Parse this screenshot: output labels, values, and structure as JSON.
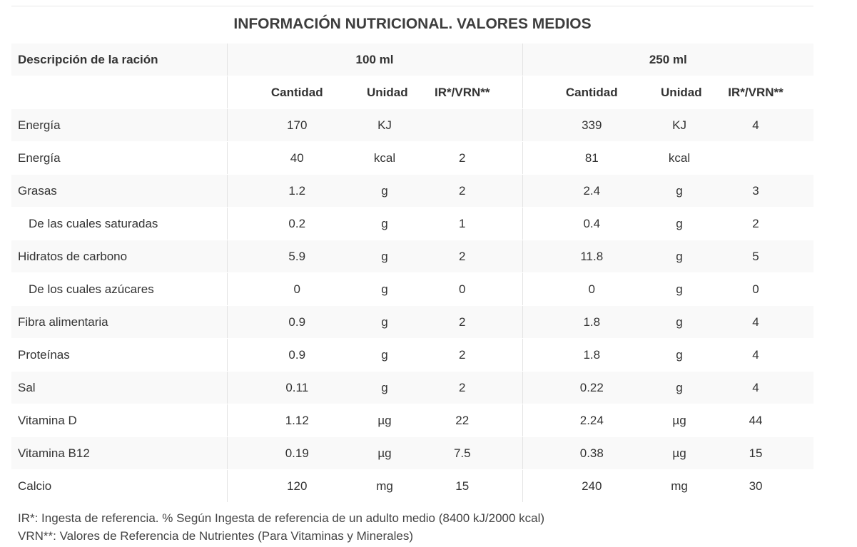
{
  "title": "INFORMACIÓN NUTRICIONAL. VALORES MEDIOS",
  "header": {
    "description_label": "Descripción de la ración",
    "group_100": "100 ml",
    "group_250": "250 ml",
    "sub_cantidad": "Cantidad",
    "sub_unidad": "Unidad",
    "sub_ir": "IR*/VRN**"
  },
  "rows": [
    {
      "name": "Energía",
      "q100": "170",
      "u100": "KJ",
      "ir100": "",
      "q250": "339",
      "u250": "KJ",
      "ir250": "4"
    },
    {
      "name": "Energía",
      "q100": "40",
      "u100": "kcal",
      "ir100": "2",
      "q250": "81",
      "u250": "kcal",
      "ir250": ""
    },
    {
      "name": "Grasas",
      "q100": "1.2",
      "u100": "g",
      "ir100": "2",
      "q250": "2.4",
      "u250": "g",
      "ir250": "3"
    },
    {
      "name": "De las cuales saturadas",
      "q100": "0.2",
      "u100": "g",
      "ir100": "1",
      "q250": "0.4",
      "u250": "g",
      "ir250": "2"
    },
    {
      "name": "Hidratos de carbono",
      "q100": "5.9",
      "u100": "g",
      "ir100": "2",
      "q250": "11.8",
      "u250": "g",
      "ir250": "5"
    },
    {
      "name": "De los cuales azúcares",
      "q100": "0",
      "u100": "g",
      "ir100": "0",
      "q250": "0",
      "u250": "g",
      "ir250": "0"
    },
    {
      "name": "Fibra alimentaria",
      "q100": "0.9",
      "u100": "g",
      "ir100": "2",
      "q250": "1.8",
      "u250": "g",
      "ir250": "4"
    },
    {
      "name": "Proteínas",
      "q100": "0.9",
      "u100": "g",
      "ir100": "2",
      "q250": "1.8",
      "u250": "g",
      "ir250": "4"
    },
    {
      "name": "Sal",
      "q100": "0.11",
      "u100": "g",
      "ir100": "2",
      "q250": "0.22",
      "u250": "g",
      "ir250": "4"
    },
    {
      "name": "Vitamina D",
      "q100": "1.12",
      "u100": "µg",
      "ir100": "22",
      "q250": "2.24",
      "u250": "µg",
      "ir250": "44"
    },
    {
      "name": "Vitamina B12",
      "q100": "0.19",
      "u100": "µg",
      "ir100": "7.5",
      "q250": "0.38",
      "u250": "µg",
      "ir250": "15"
    },
    {
      "name": "Calcio",
      "q100": "120",
      "u100": "mg",
      "ir100": "15",
      "q250": "240",
      "u250": "mg",
      "ir250": "30"
    }
  ],
  "notes": {
    "ir": "IR*: Ingesta de referencia. % Según Ingesta de referencia de un adulto medio (8400 kJ/2000 kcal)",
    "vrn": "VRN**: Valores de Referencia de Nutrientes (Para Vitaminas y Minerales)"
  }
}
